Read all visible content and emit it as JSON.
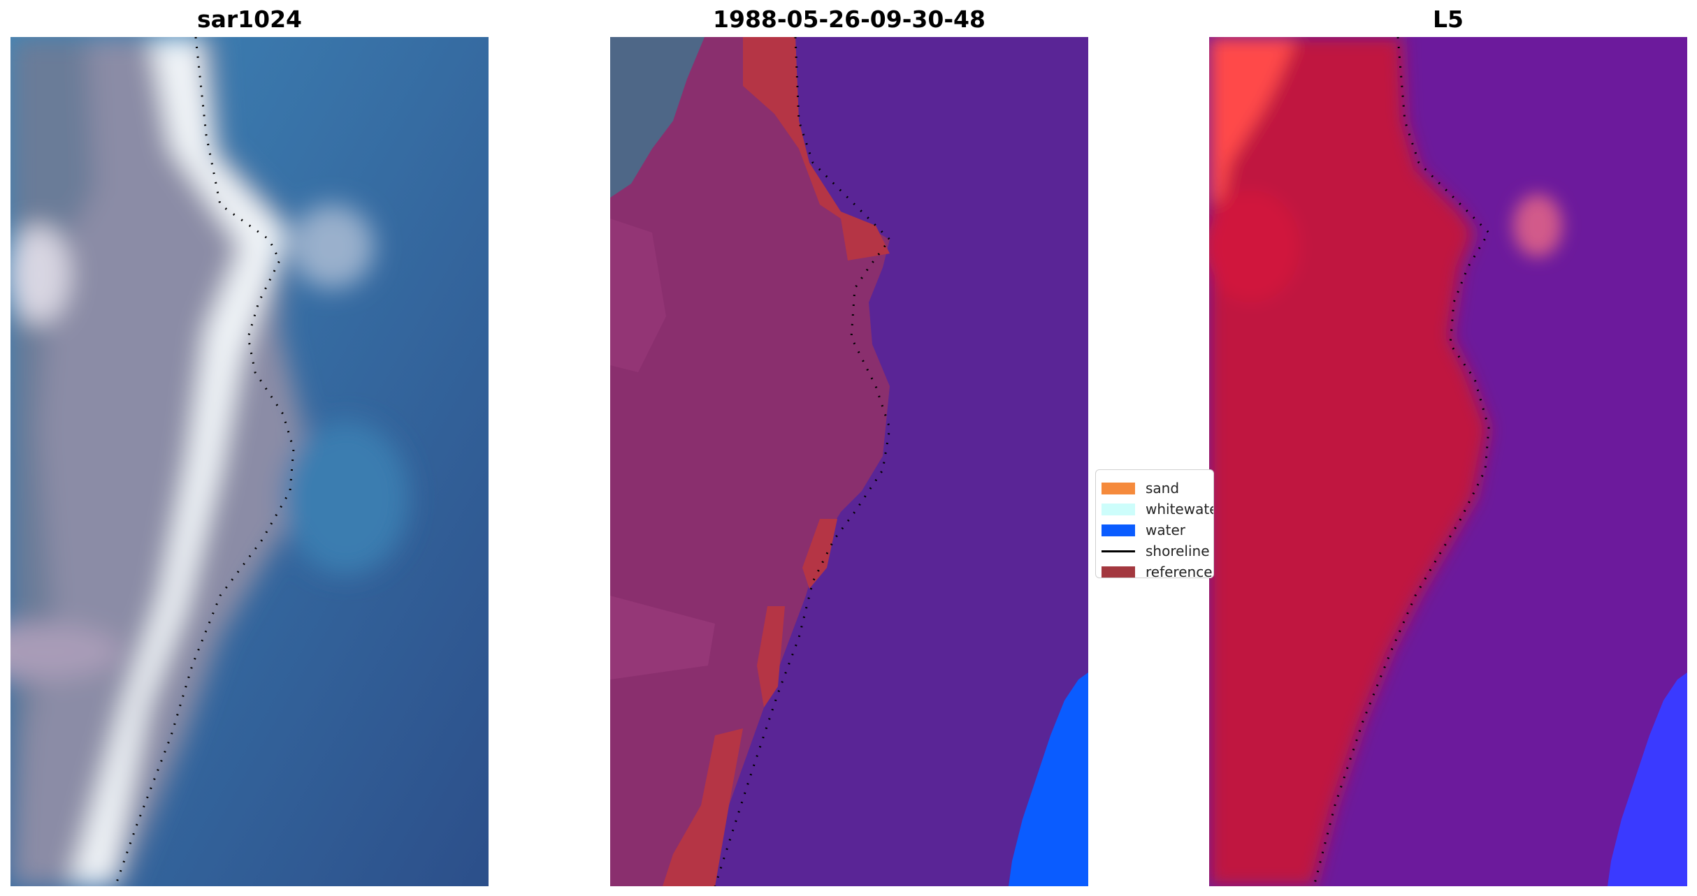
{
  "panels": [
    {
      "title": "sar1024"
    },
    {
      "title": "1988-05-26-09-30-48"
    },
    {
      "title": "L5"
    }
  ],
  "legend": {
    "items": [
      {
        "label": "sand",
        "color": "#f58a3c",
        "kind": "patch"
      },
      {
        "label": "whitewater",
        "color": "#cdfdfb",
        "kind": "patch"
      },
      {
        "label": "water",
        "color": "#0a5cff",
        "kind": "patch"
      },
      {
        "label": "shoreline",
        "color": "#000000",
        "kind": "line"
      },
      {
        "label": "reference",
        "color": "#a3383f",
        "kind": "patch"
      }
    ]
  },
  "colors": {
    "land_rgb": "#8a8ca8",
    "sea_rgb": "#2f6aa3",
    "surf_rgb": "#f2f6fa",
    "classified_land": "#8a2f6e",
    "classified_water": "#5a2596",
    "classified_reference": "#b53545",
    "classified_true_water": "#0a5cff",
    "index_land": "#c0153f",
    "index_water": "#6c1a9c",
    "index_hot": "#ff4a4a",
    "index_cold": "#1a10ff"
  }
}
